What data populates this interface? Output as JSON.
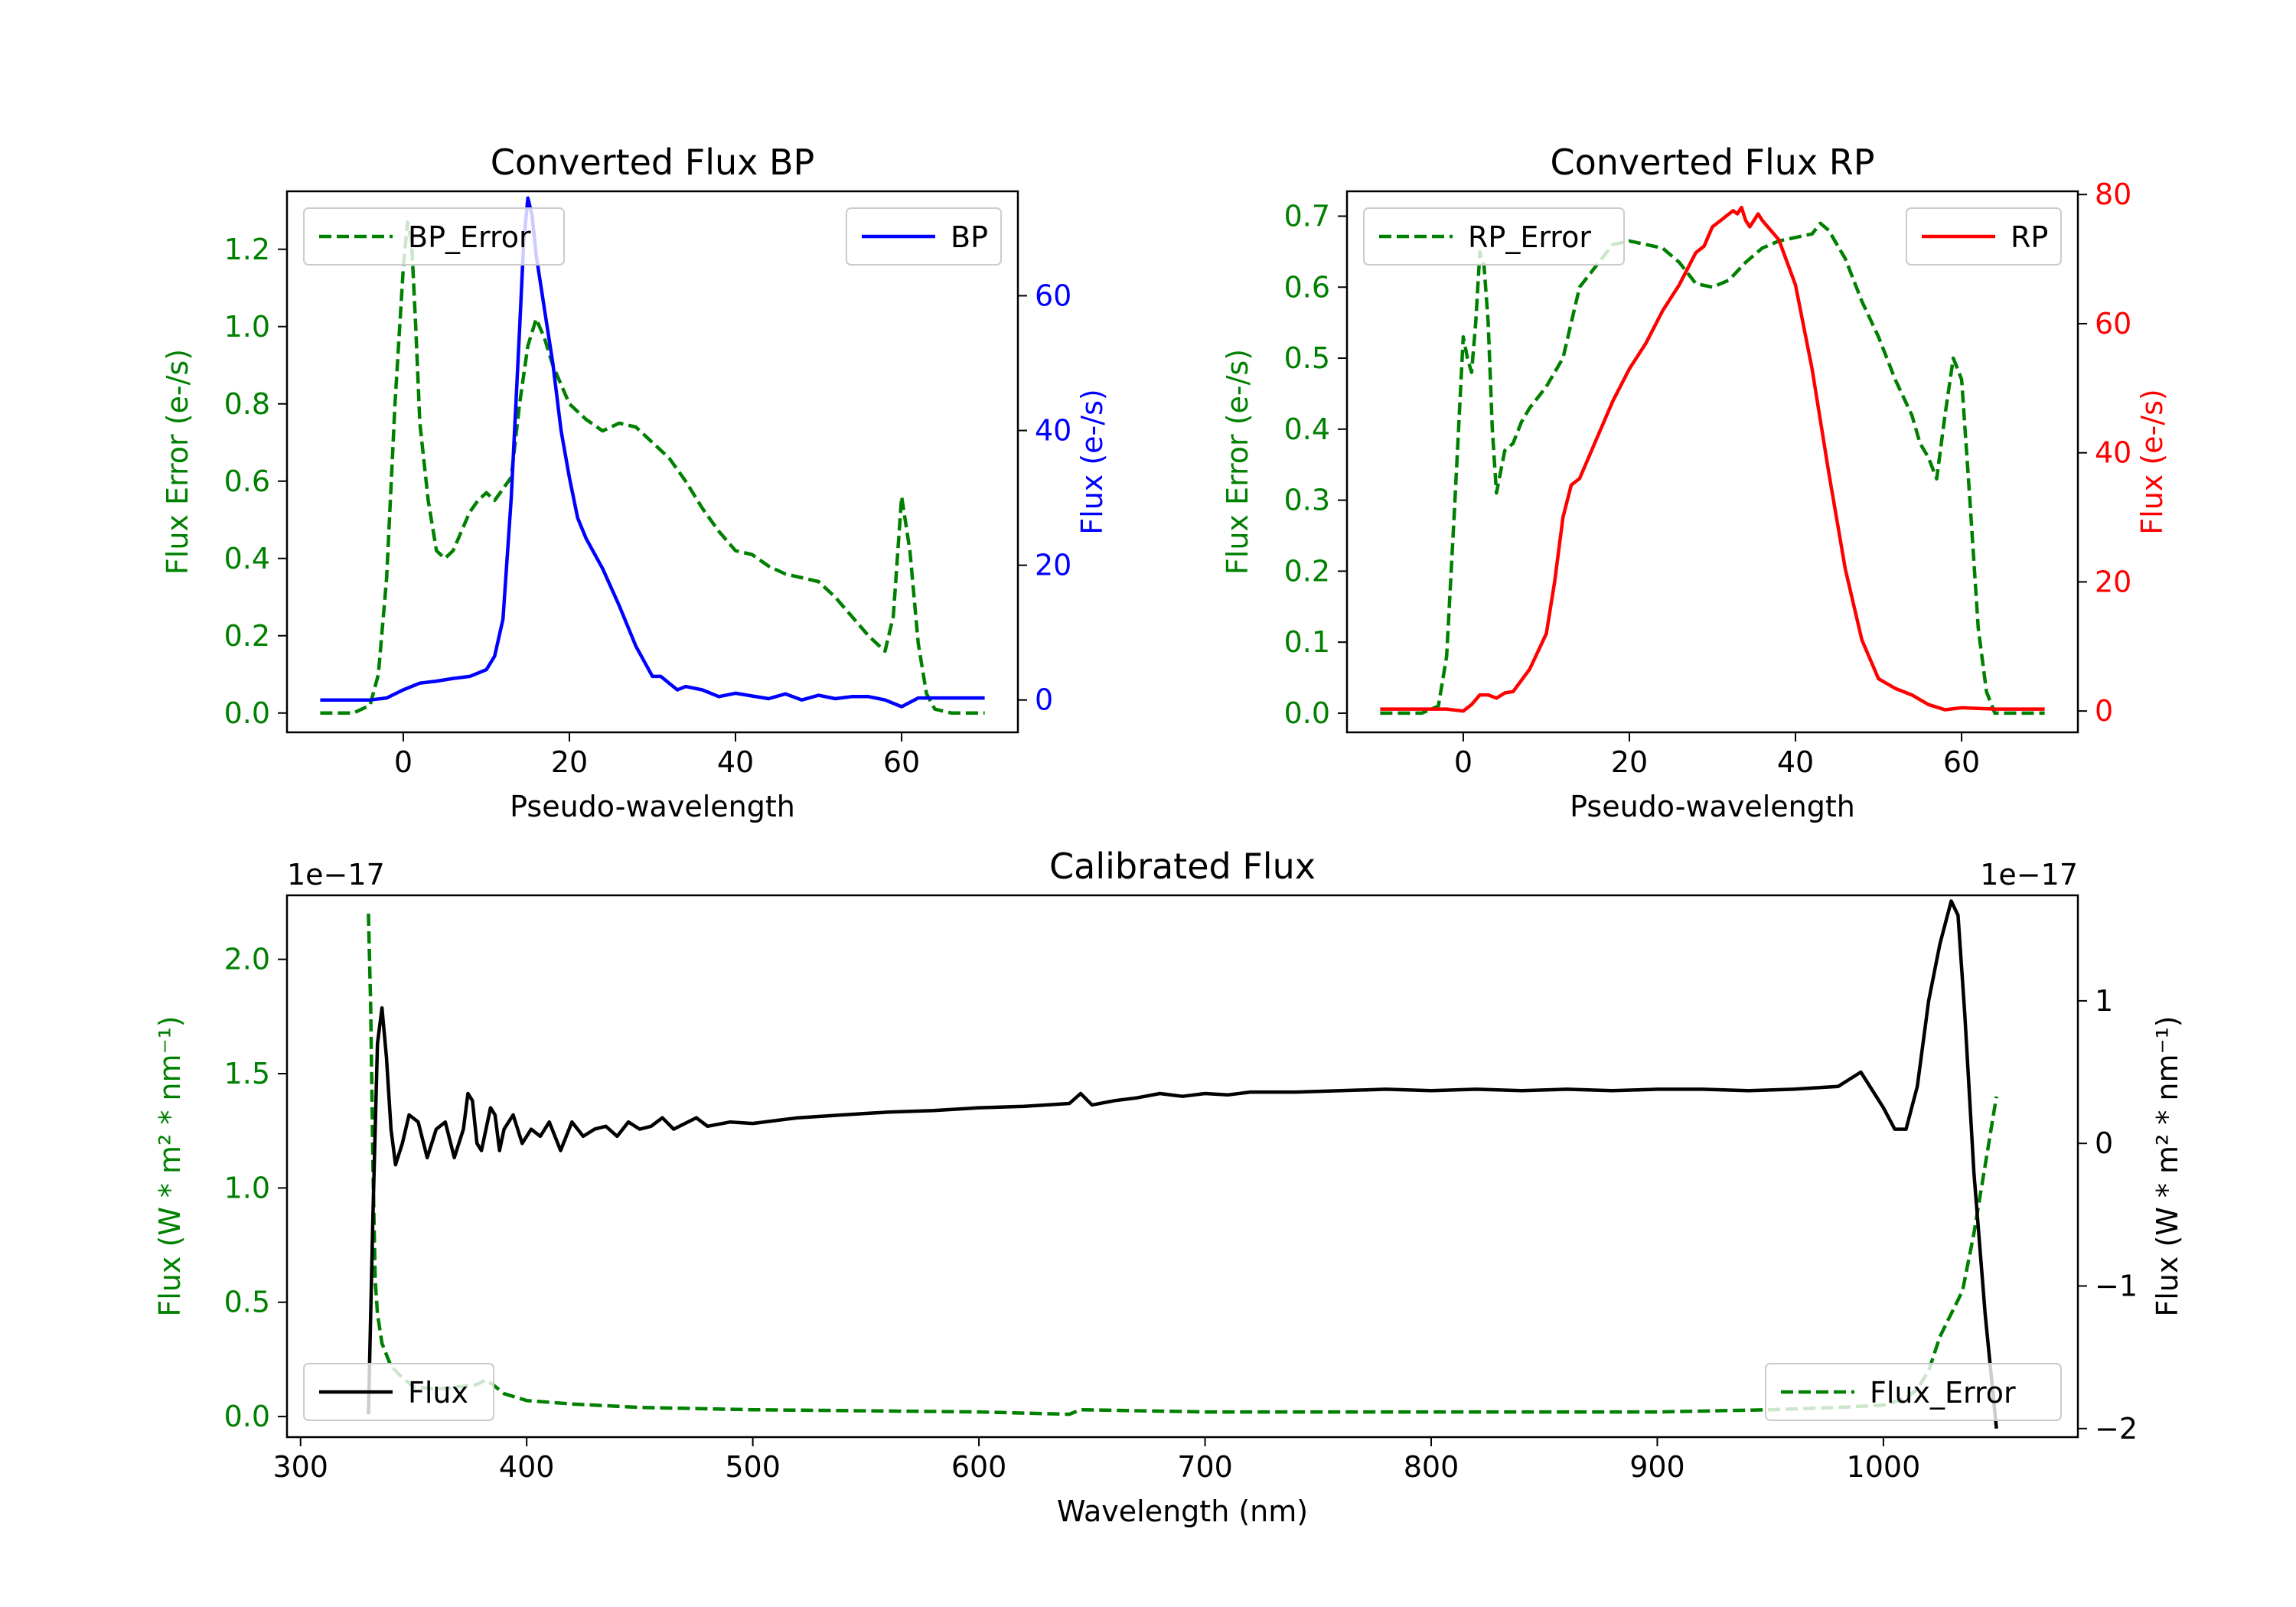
{
  "colors": {
    "green": "#008000",
    "blue": "#0000ff",
    "red": "#ff0000",
    "black": "#000000",
    "legend_edge": "#cccccc"
  },
  "chart_data": [
    {
      "id": "bp",
      "type": "line",
      "title": "Converted Flux BP",
      "xlabel": "Pseudo-wavelength",
      "ylabel_left": "Flux Error (e-/s)",
      "ylabel_right": "Flux (e-/s)",
      "xlim": [
        -14,
        74
      ],
      "ylim_left": [
        -0.05,
        1.35
      ],
      "ylim_right": [
        -4.8,
        75.5
      ],
      "xticks": [
        0,
        20,
        40,
        60
      ],
      "yticks_left": [
        0.0,
        0.2,
        0.4,
        0.6,
        0.8,
        1.0,
        1.2
      ],
      "yticks_right": [
        0,
        20,
        40,
        60
      ],
      "right_color": "#0000ff",
      "series": [
        {
          "name": "BP_Error",
          "axis": "left",
          "color": "#008000",
          "dash": true,
          "legend": "upper left",
          "x": [
            -10,
            -6,
            -4,
            -3,
            -2,
            -1,
            0,
            0.5,
            1,
            1.5,
            2,
            3,
            4,
            5,
            6,
            7,
            8,
            9,
            10,
            11,
            12,
            13,
            14,
            15,
            16,
            17,
            18,
            19,
            20,
            22,
            24,
            26,
            28,
            30,
            32,
            34,
            36,
            38,
            40,
            42,
            44,
            46,
            48,
            50,
            52,
            54,
            56,
            57,
            58,
            59,
            60,
            61,
            62,
            63,
            64,
            66,
            70
          ],
          "y": [
            0.0,
            0.0,
            0.02,
            0.1,
            0.35,
            0.8,
            1.15,
            1.27,
            1.22,
            1.0,
            0.75,
            0.55,
            0.42,
            0.4,
            0.42,
            0.47,
            0.52,
            0.55,
            0.57,
            0.55,
            0.58,
            0.61,
            0.8,
            0.95,
            1.02,
            0.97,
            0.9,
            0.85,
            0.8,
            0.76,
            0.73,
            0.75,
            0.74,
            0.7,
            0.66,
            0.6,
            0.53,
            0.47,
            0.42,
            0.41,
            0.38,
            0.36,
            0.35,
            0.34,
            0.3,
            0.25,
            0.2,
            0.18,
            0.16,
            0.25,
            0.56,
            0.42,
            0.18,
            0.05,
            0.01,
            0.0,
            0.0
          ]
        },
        {
          "name": "BP",
          "axis": "right",
          "color": "#0000ff",
          "dash": false,
          "legend": "upper right",
          "x": [
            -10,
            -4,
            -2,
            0,
            2,
            4,
            6,
            8,
            10,
            11,
            12,
            13,
            14,
            14.5,
            15,
            15.5,
            16,
            17,
            18,
            19,
            20,
            21,
            22,
            24,
            26,
            28,
            30,
            31,
            32,
            33,
            34,
            36,
            38,
            40,
            42,
            44,
            46,
            48,
            50,
            52,
            54,
            56,
            58,
            60,
            62,
            64,
            70
          ],
          "y": [
            0,
            0,
            0.3,
            1.5,
            2.5,
            2.8,
            3.2,
            3.5,
            4.5,
            6.5,
            12,
            30,
            55,
            68,
            74.5,
            72,
            66,
            58,
            50,
            40,
            33,
            27,
            24,
            19.5,
            14,
            8,
            3.5,
            3.5,
            2.5,
            1.5,
            2.0,
            1.5,
            0.5,
            1.0,
            0.6,
            0.2,
            0.9,
            0,
            0.7,
            0.2,
            0.5,
            0.5,
            0.0,
            -1.0,
            0.3,
            0.3,
            0.3
          ]
        }
      ]
    },
    {
      "id": "rp",
      "type": "line",
      "title": "Converted Flux RP",
      "xlabel": "Pseudo-wavelength",
      "ylabel_left": "Flux Error (e-/s)",
      "ylabel_right": "Flux (e-/s)",
      "xlim": [
        -14,
        74
      ],
      "ylim_left": [
        -0.027,
        0.735
      ],
      "ylim_right": [
        -3.3,
        80.5
      ],
      "xticks": [
        0,
        20,
        40,
        60
      ],
      "yticks_left": [
        0.0,
        0.1,
        0.2,
        0.3,
        0.4,
        0.5,
        0.6,
        0.7
      ],
      "yticks_right": [
        0,
        20,
        40,
        60,
        80
      ],
      "right_color": "#ff0000",
      "series": [
        {
          "name": "RP_Error",
          "axis": "left",
          "color": "#008000",
          "dash": true,
          "legend": "upper left",
          "x": [
            -10,
            -5,
            -3,
            -2,
            -1,
            0,
            0.5,
            1,
            1.5,
            2,
            2.5,
            3,
            3.5,
            4,
            5,
            6,
            7,
            8,
            10,
            12,
            14,
            16,
            18,
            20,
            22,
            24,
            26,
            28,
            30,
            32,
            34,
            36,
            38,
            40,
            42,
            43,
            44,
            46,
            48,
            50,
            52,
            54,
            55,
            56,
            57,
            58,
            59,
            60,
            61,
            62,
            63,
            64,
            66,
            70
          ],
          "y": [
            0.0,
            0.0,
            0.01,
            0.08,
            0.3,
            0.53,
            0.5,
            0.48,
            0.55,
            0.65,
            0.63,
            0.55,
            0.4,
            0.31,
            0.37,
            0.38,
            0.41,
            0.43,
            0.46,
            0.5,
            0.6,
            0.63,
            0.66,
            0.665,
            0.66,
            0.655,
            0.635,
            0.605,
            0.6,
            0.61,
            0.635,
            0.655,
            0.665,
            0.67,
            0.675,
            0.69,
            0.68,
            0.64,
            0.58,
            0.53,
            0.47,
            0.42,
            0.38,
            0.36,
            0.33,
            0.42,
            0.5,
            0.47,
            0.3,
            0.12,
            0.03,
            0.0,
            0.0,
            0.0
          ]
        },
        {
          "name": "RP",
          "axis": "right",
          "color": "#ff0000",
          "dash": false,
          "legend": "upper right",
          "x": [
            -10,
            -2,
            0,
            1,
            2,
            3,
            4,
            5,
            6,
            8,
            10,
            11,
            12,
            13,
            14,
            16,
            18,
            20,
            22,
            24,
            26,
            28,
            29,
            30,
            31,
            32,
            32.5,
            33,
            33.5,
            34,
            34.5,
            35,
            35.5,
            36,
            38,
            40,
            42,
            44,
            46,
            48,
            50,
            52,
            54,
            56,
            58,
            60,
            62,
            64,
            66,
            70
          ],
          "y": [
            0.3,
            0.3,
            0.0,
            1.0,
            2.5,
            2.5,
            2.0,
            2.8,
            3.0,
            6.5,
            12,
            20,
            30,
            35,
            36,
            42,
            48,
            53,
            57,
            62,
            66,
            71,
            72,
            75,
            76,
            77,
            77.5,
            77,
            78,
            76,
            75,
            76,
            77,
            76,
            73,
            66,
            53,
            37,
            22,
            11,
            5,
            3.5,
            2.5,
            1.0,
            0.2,
            0.5,
            0.4,
            0.3,
            0.3,
            0.3
          ]
        }
      ]
    },
    {
      "id": "calibrated",
      "type": "line",
      "title": "Calibrated Flux",
      "xlabel": "Wavelength (nm)",
      "ylabel_left": "Flux (W * m² * nm⁻¹)",
      "ylabel_right": "Flux (W * m² * nm⁻¹)",
      "offset_left": "1e−17",
      "offset_right": "1e−17",
      "xlim": [
        294,
        1086
      ],
      "ylim_left": [
        -0.09,
        2.28
      ],
      "ylim_right": [
        -2.06,
        1.74
      ],
      "xticks": [
        300,
        400,
        500,
        600,
        700,
        800,
        900,
        1000
      ],
      "yticks_left": [
        0.0,
        0.5,
        1.0,
        1.5,
        2.0
      ],
      "yticks_left_labels": [
        "0.0",
        "0.5",
        "1.0",
        "1.5",
        "2.0"
      ],
      "yticks_right": [
        -2,
        -1,
        0,
        1
      ],
      "yticks_right_labels": [
        "−2",
        "−1",
        "0",
        "1"
      ],
      "right_color": "#000000",
      "series": [
        {
          "name": "Flux_Error",
          "axis": "left",
          "color": "#008000",
          "dash": true,
          "legend": "lower right",
          "x": [
            330,
            331,
            332,
            333,
            334,
            336,
            340,
            345,
            350,
            360,
            370,
            378,
            382,
            385,
            390,
            400,
            420,
            450,
            500,
            550,
            600,
            640,
            645,
            700,
            800,
            900,
            950,
            980,
            1000,
            1010,
            1015,
            1020,
            1025,
            1030,
            1035,
            1040,
            1045,
            1050
          ],
          "y": [
            2.2,
            1.8,
            1.1,
            0.6,
            0.45,
            0.32,
            0.22,
            0.17,
            0.13,
            0.12,
            0.13,
            0.14,
            0.16,
            0.14,
            0.1,
            0.07,
            0.055,
            0.04,
            0.03,
            0.025,
            0.02,
            0.01,
            0.03,
            0.02,
            0.02,
            0.02,
            0.03,
            0.04,
            0.05,
            0.08,
            0.12,
            0.2,
            0.35,
            0.45,
            0.55,
            0.8,
            1.1,
            1.4
          ]
        },
        {
          "name": "Flux",
          "axis": "right",
          "color": "#000000",
          "dash": false,
          "legend": "lower left",
          "x": [
            330,
            332,
            334,
            336,
            338,
            340,
            342,
            345,
            348,
            352,
            356,
            360,
            364,
            368,
            372,
            374,
            376,
            378,
            380,
            384,
            386,
            388,
            390,
            394,
            398,
            402,
            406,
            410,
            415,
            420,
            425,
            430,
            435,
            440,
            445,
            450,
            455,
            460,
            465,
            470,
            475,
            480,
            490,
            500,
            520,
            540,
            560,
            580,
            600,
            620,
            640,
            645,
            650,
            660,
            670,
            680,
            690,
            700,
            710,
            720,
            740,
            760,
            780,
            800,
            820,
            840,
            860,
            880,
            900,
            920,
            940,
            960,
            980,
            990,
            1000,
            1005,
            1010,
            1015,
            1020,
            1025,
            1030,
            1033,
            1036,
            1040,
            1045,
            1050
          ],
          "y": [
            -1.9,
            -0.5,
            0.7,
            0.95,
            0.6,
            0.1,
            -0.15,
            0.0,
            0.2,
            0.15,
            -0.1,
            0.1,
            0.15,
            -0.1,
            0.1,
            0.35,
            0.3,
            0.0,
            -0.05,
            0.25,
            0.2,
            -0.05,
            0.1,
            0.2,
            0.0,
            0.1,
            0.05,
            0.15,
            -0.05,
            0.15,
            0.05,
            0.1,
            0.12,
            0.05,
            0.15,
            0.1,
            0.12,
            0.18,
            0.1,
            0.14,
            0.18,
            0.12,
            0.15,
            0.14,
            0.18,
            0.2,
            0.22,
            0.23,
            0.25,
            0.26,
            0.28,
            0.35,
            0.27,
            0.3,
            0.32,
            0.35,
            0.33,
            0.35,
            0.34,
            0.36,
            0.36,
            0.37,
            0.38,
            0.37,
            0.38,
            0.37,
            0.38,
            0.37,
            0.38,
            0.38,
            0.37,
            0.38,
            0.4,
            0.5,
            0.25,
            0.1,
            0.1,
            0.4,
            1.0,
            1.4,
            1.7,
            1.6,
            0.9,
            -0.2,
            -1.2,
            -2.0
          ]
        }
      ]
    }
  ]
}
